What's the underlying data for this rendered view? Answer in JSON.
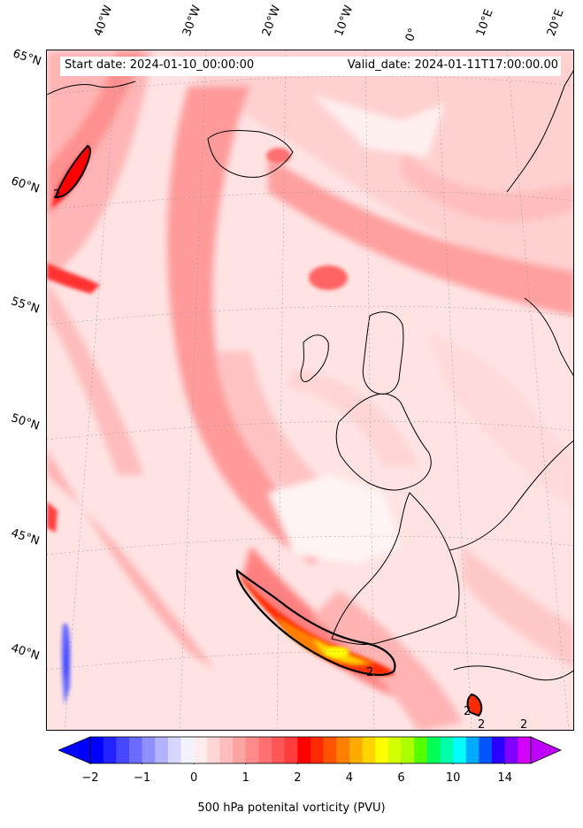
{
  "map": {
    "start_date": "Start date: 2024-01-10_00:00:00",
    "valid_date": "Valid_date: 2024-01-11T17:00:00.00",
    "variable": "500 hPa potenital vorticity (PVU)",
    "projection": "conic",
    "lon_labels": [
      "40°W",
      "30°W",
      "20°W",
      "10°W",
      "0°",
      "10°E",
      "20°E"
    ],
    "lat_labels": [
      "65°N",
      "60°N",
      "55°N",
      "50°N",
      "45°N",
      "40°N"
    ],
    "contour_labels": [
      "2",
      "2",
      "2",
      "2",
      "2"
    ],
    "place_features": [
      "Iceland",
      "Great Britain",
      "Ireland",
      "France",
      "Iberian Peninsula",
      "Norway",
      "North Africa coast"
    ]
  },
  "colorbar": {
    "tick_labels": [
      "−2",
      "−1",
      "0",
      "1",
      "2",
      "4",
      "6",
      "10",
      "14"
    ],
    "levels": [
      -2,
      -1.75,
      -1.5,
      -1.25,
      -1,
      -0.75,
      -0.5,
      -0.25,
      0,
      0.25,
      0.5,
      0.75,
      1,
      1.25,
      1.5,
      1.75,
      2,
      2.5,
      3,
      3.5,
      4,
      4.5,
      5,
      5.5,
      6,
      7,
      8,
      9,
      10,
      11,
      12,
      13,
      14,
      15
    ],
    "colors": [
      "#0000ff",
      "#2323ff",
      "#4747ff",
      "#6b6bff",
      "#8f8fff",
      "#b2b2ff",
      "#d6d6ff",
      "#f3f3ff",
      "#ffeded",
      "#ffd6d6",
      "#ffbdbd",
      "#ffa3a3",
      "#ff8a8a",
      "#ff7070",
      "#ff5757",
      "#ff3d3d",
      "#ff0000",
      "#ff2a00",
      "#ff5500",
      "#ff8000",
      "#ffaa00",
      "#ffd400",
      "#ffff00",
      "#d4ff00",
      "#aaff00",
      "#55ff00",
      "#00ff55",
      "#00ffaa",
      "#00ffff",
      "#00aaff",
      "#0055ff",
      "#2a00ff",
      "#8000ff",
      "#d400ff"
    ],
    "extend": "both",
    "underflow_color": "#0000ff",
    "overflow_color": "#c000ff"
  }
}
